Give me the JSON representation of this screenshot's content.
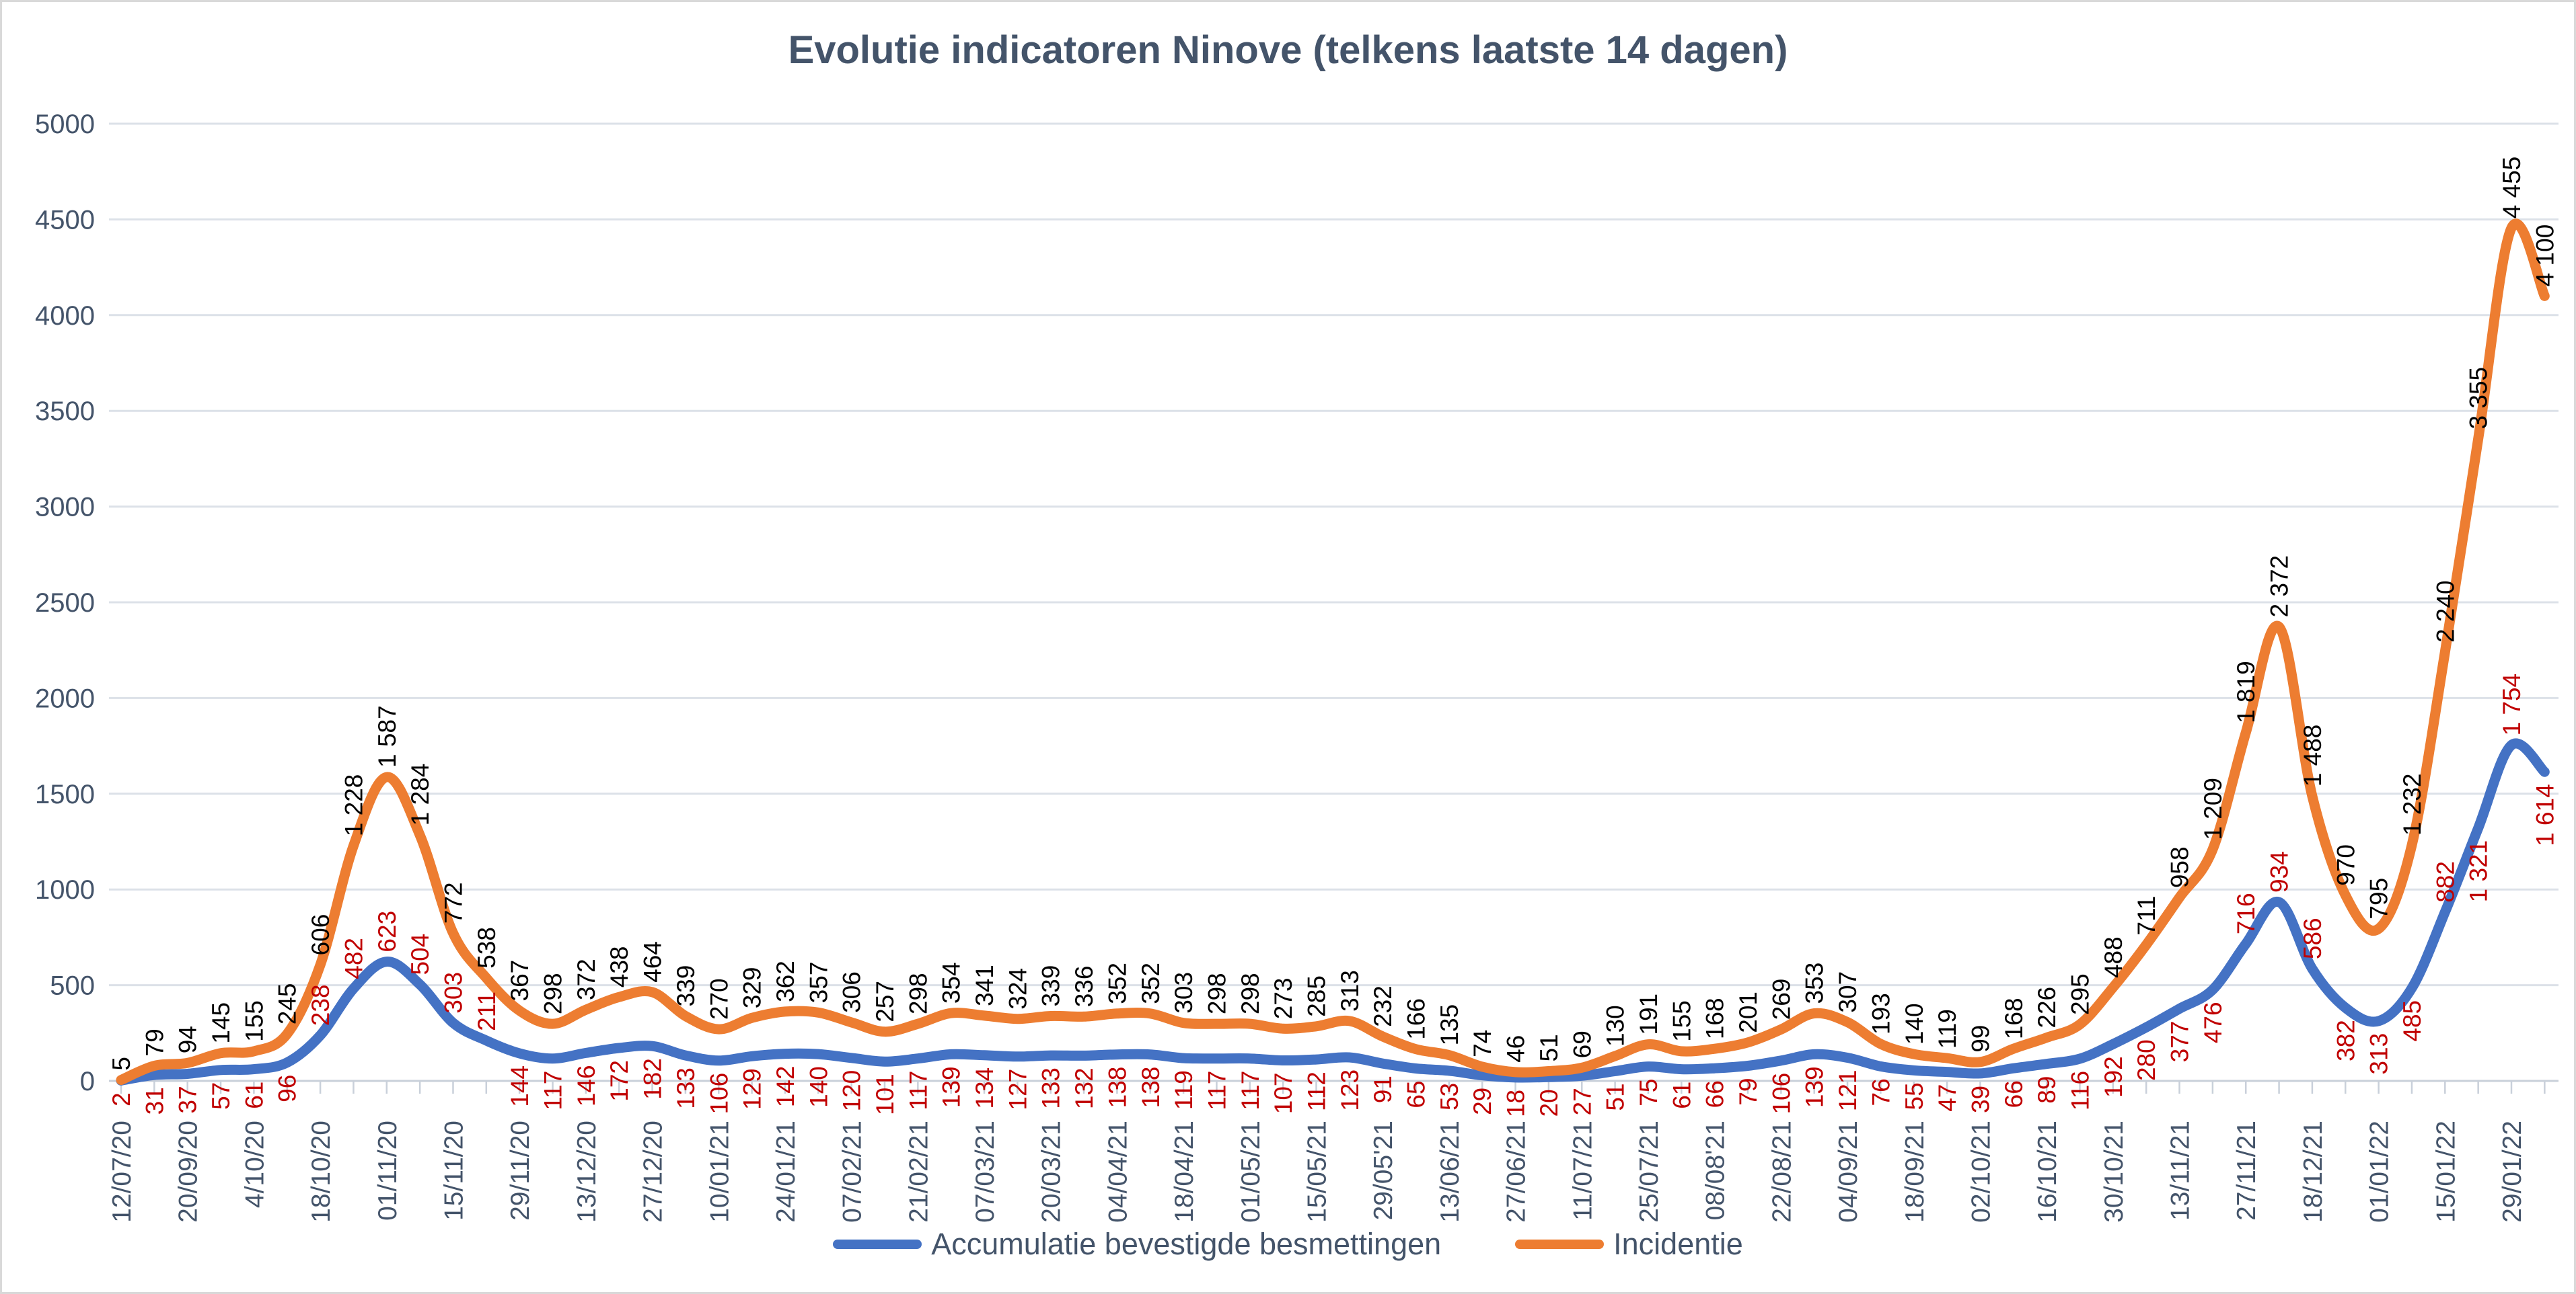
{
  "chart_data": {
    "type": "line",
    "title": "Evolutie indicatoren Ninove (telkens laatste 14 dagen)",
    "categories": [
      "12/07/20",
      "20/09/20",
      "4/10/20",
      "18/10/20",
      "01/11/20",
      "15/11/20",
      "29/11/20",
      "13/12/20",
      "27/12/20",
      "10/01/21",
      "24/01/21",
      "07/02/21",
      "21/02/21",
      "07/03/21",
      "20/03/21",
      "04/04/21",
      "18/04/21",
      "01/05/21",
      "15/05/21",
      "29/05'21",
      "13/06/21",
      "27/06/21",
      "11/07/21",
      "25/07/21",
      "08/08'21",
      "22/08/21",
      "04/09/21",
      "18/09/21",
      "02/10/21",
      "16/10/21",
      "30/10/21",
      "13/11/21",
      "27/11/21",
      "18/12/21",
      "01/01/22",
      "15/01/22",
      "29/01/22"
    ],
    "points_per_label": 2,
    "n_points": 74,
    "ylim": [
      0,
      5000
    ],
    "y_tick_step": 500,
    "y_ticks": [
      "0",
      "500",
      "1000",
      "1500",
      "2000",
      "2500",
      "3000",
      "3500",
      "4000",
      "4500",
      "5000"
    ],
    "grid": "horizontal",
    "legend_position": "bottom",
    "number_format": "space-thousands",
    "series": [
      {
        "name": "Accumulatie bevestigde besmettingen",
        "color": "#4472C4",
        "label_color": "#C00000",
        "values": [
          2,
          31,
          37,
          57,
          61,
          96,
          238,
          482,
          623,
          504,
          303,
          211,
          144,
          117,
          146,
          172,
          182,
          133,
          106,
          129,
          142,
          140,
          120,
          101,
          117,
          139,
          134,
          127,
          133,
          132,
          138,
          138,
          119,
          117,
          117,
          107,
          112,
          123,
          91,
          65,
          53,
          29,
          18,
          20,
          27,
          51,
          75,
          61,
          66,
          79,
          106,
          139,
          121,
          76,
          55,
          47,
          39,
          66,
          89,
          116,
          192,
          280,
          377,
          476,
          716,
          934,
          586,
          382,
          313,
          485,
          882,
          1321,
          1754,
          1614
        ]
      },
      {
        "name": "Incidentie",
        "color": "#ED7D31",
        "label_color": "#000000",
        "values": [
          5,
          79,
          94,
          145,
          155,
          245,
          606,
          1228,
          1587,
          1284,
          772,
          538,
          367,
          298,
          372,
          438,
          464,
          339,
          270,
          329,
          362,
          357,
          306,
          257,
          298,
          354,
          341,
          324,
          339,
          336,
          352,
          352,
          303,
          298,
          298,
          273,
          285,
          313,
          232,
          166,
          135,
          74,
          46,
          51,
          69,
          130,
          191,
          155,
          168,
          201,
          269,
          353,
          307,
          193,
          140,
          119,
          99,
          168,
          226,
          295,
          488,
          711,
          958,
          1209,
          1819,
          2372,
          1488,
          970,
          795,
          1232,
          2240,
          3355,
          4455,
          4100
        ]
      }
    ]
  },
  "colors": {
    "title": "#44546A",
    "axis_text": "#44546A",
    "gridline": "#DCE1E8",
    "axis_line": "#C9D0DA",
    "background": "#FFFFFF"
  }
}
